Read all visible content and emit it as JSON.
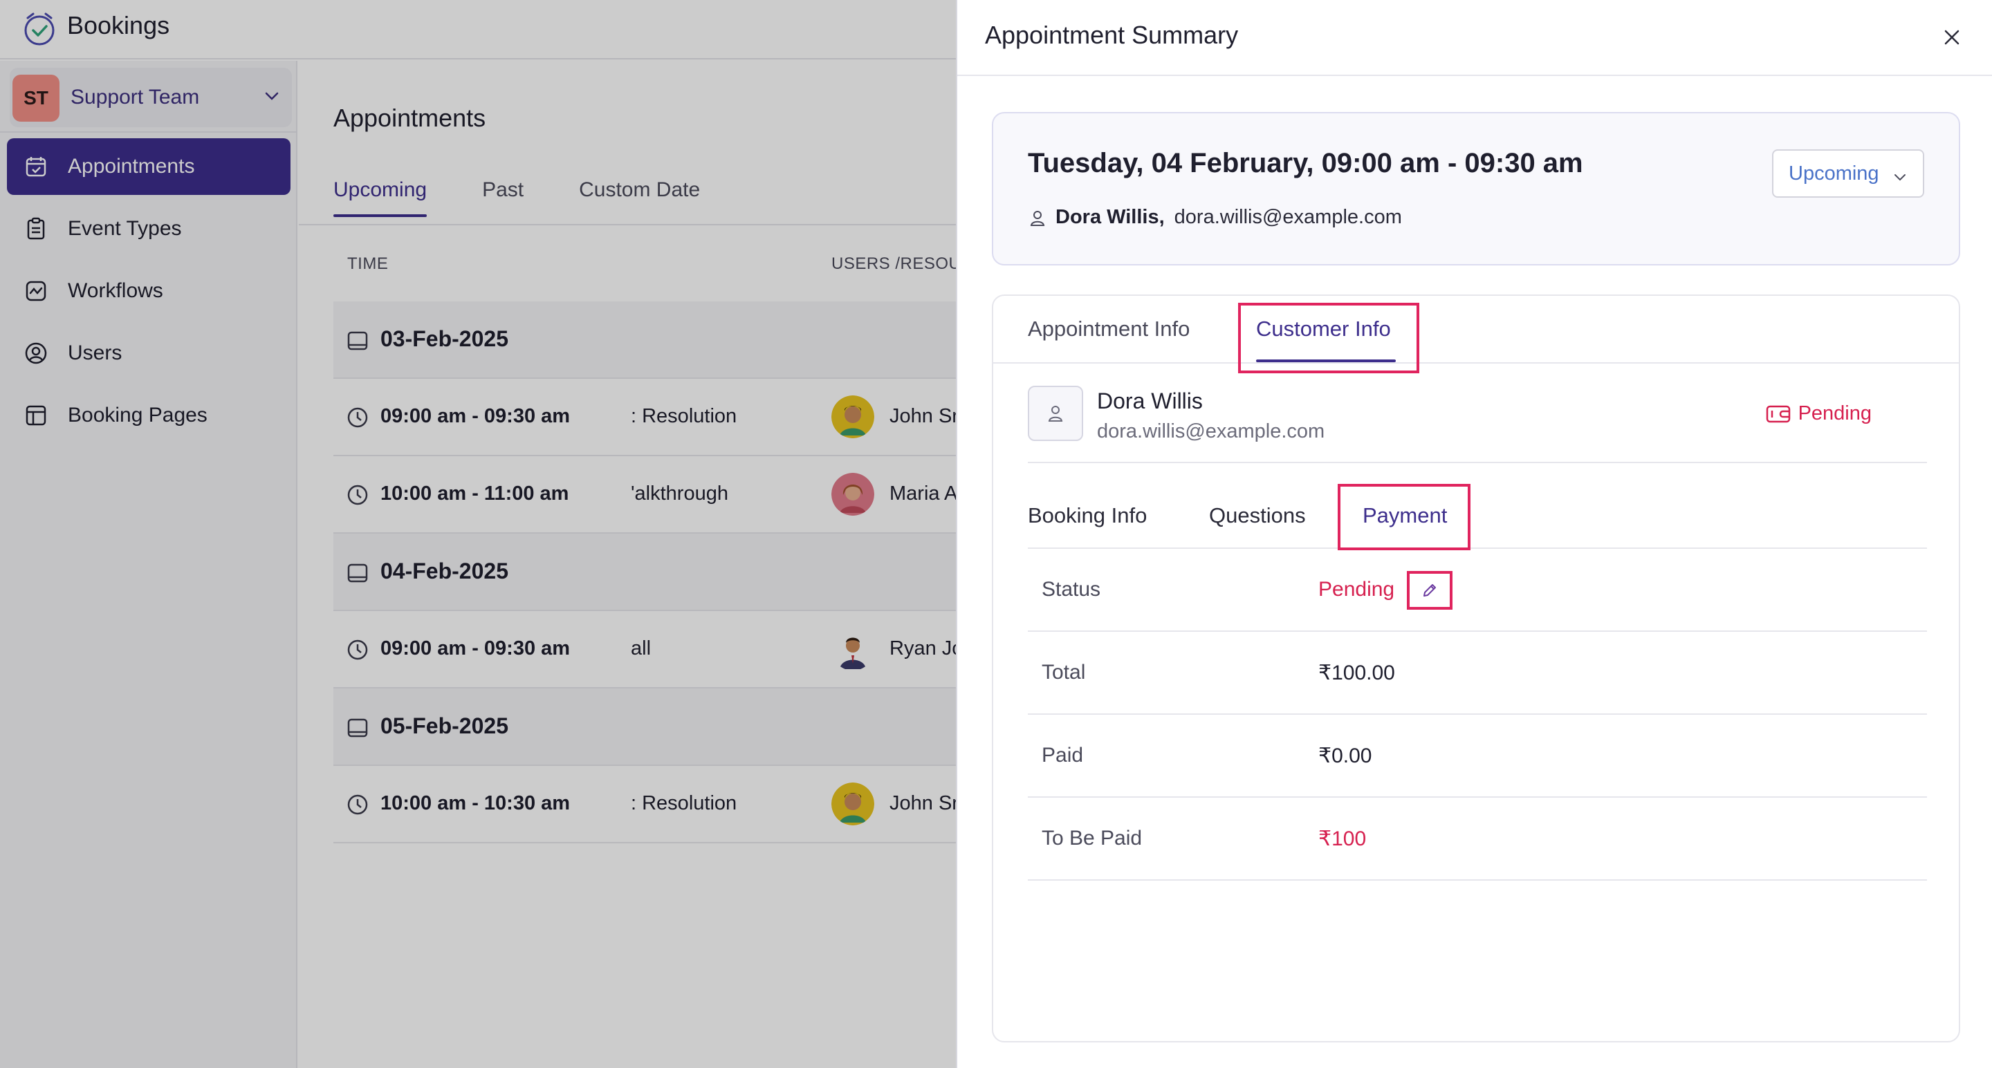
{
  "app": {
    "title": "Bookings",
    "team": {
      "initials": "ST",
      "name": "Support Team"
    },
    "nav": [
      {
        "label": "Appointments",
        "icon": "calendar-check-icon",
        "active": true
      },
      {
        "label": "Event Types",
        "icon": "clipboard-icon",
        "active": false
      },
      {
        "label": "Workflows",
        "icon": "workflow-icon",
        "active": false
      },
      {
        "label": "Users",
        "icon": "user-circle-icon",
        "active": false
      },
      {
        "label": "Booking Pages",
        "icon": "layout-icon",
        "active": false
      }
    ]
  },
  "main": {
    "title": "Appointments",
    "tabs": [
      "Upcoming",
      "Past",
      "Custom Date"
    ],
    "columns": {
      "time": "TIME",
      "users": "USERS /RESOUR"
    },
    "groups": [
      {
        "date": "03-Feb-2025",
        "rows": [
          {
            "time": "09:00 am - 09:30 am",
            "service": ": Resolution",
            "user": "John Sr",
            "avatar": "yellow"
          },
          {
            "time": "10:00 am - 11:00 am",
            "service": "'alkthrough",
            "user": "Maria A",
            "avatar": "pink"
          }
        ]
      },
      {
        "date": "04-Feb-2025",
        "rows": [
          {
            "time": "09:00 am - 09:30 am",
            "service": "all",
            "user": "Ryan Jc",
            "avatar": "white"
          }
        ]
      },
      {
        "date": "05-Feb-2025",
        "rows": [
          {
            "time": "10:00 am - 10:30 am",
            "service": ": Resolution",
            "user": "John Sr",
            "avatar": "yellow"
          }
        ]
      }
    ]
  },
  "drawer": {
    "title": "Appointment Summary",
    "summary": {
      "datetime": "Tuesday, 04 February, 09:00 am - 09:30 am",
      "name": "Dora Willis,",
      "email": "dora.willis@example.com",
      "status": "Upcoming"
    },
    "tabs": [
      "Appointment Info",
      "Customer Info"
    ],
    "customer": {
      "name": "Dora Willis",
      "email": "dora.willis@example.com",
      "payment_status": "Pending"
    },
    "subtabs": [
      "Booking Info",
      "Questions",
      "Payment"
    ],
    "payment": {
      "status_label": "Status",
      "status_value": "Pending",
      "total_label": "Total",
      "total_value": "₹100.00",
      "paid_label": "Paid",
      "paid_value": "₹0.00",
      "tobepaid_label": "To Be Paid",
      "tobepaid_value": "₹100"
    },
    "colors": {
      "accent": "#3d2e8c",
      "highlight": "#e0245e",
      "pending": "#d6204f"
    }
  }
}
